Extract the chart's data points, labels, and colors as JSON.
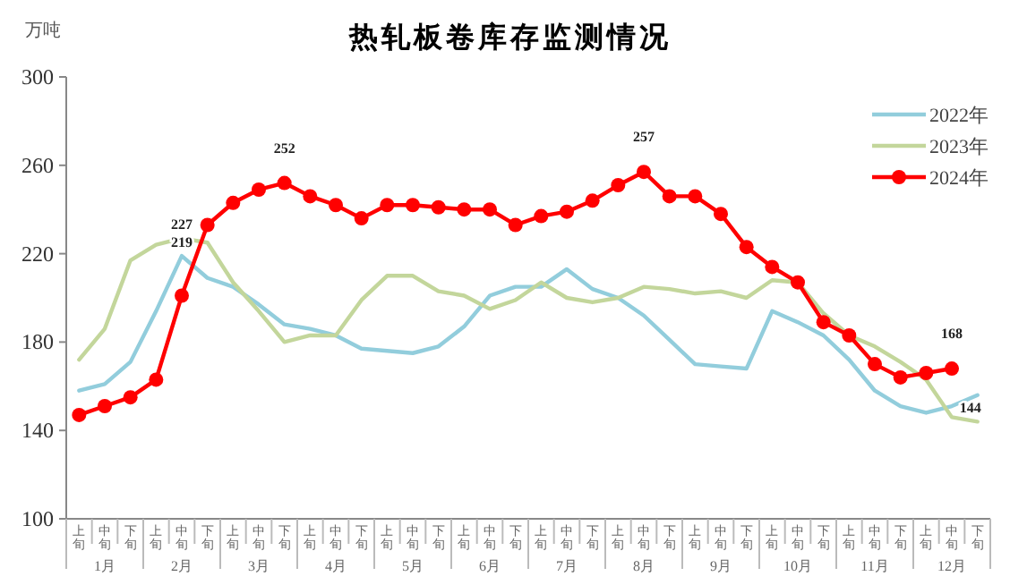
{
  "chart_data": {
    "type": "line",
    "title": "热轧板卷库存监测情况",
    "ylabel": "万吨",
    "categories": [
      "上旬",
      "中旬",
      "下旬",
      "上旬",
      "中旬",
      "下旬",
      "上旬",
      "中旬",
      "下旬",
      "上旬",
      "中旬",
      "下旬",
      "上旬",
      "中旬",
      "下旬",
      "上旬",
      "中旬",
      "下旬",
      "上旬",
      "中旬",
      "下旬",
      "上旬",
      "中旬",
      "下旬",
      "上旬",
      "中旬",
      "下旬",
      "上旬",
      "中旬",
      "下旬",
      "上旬",
      "中旬",
      "下旬",
      "上旬",
      "中旬",
      "下旬"
    ],
    "annotations": [
      "1月",
      "2月",
      "3月",
      "4月",
      "5月",
      "6月",
      "7月",
      "8月",
      "9月",
      "10月",
      "11月",
      "12月"
    ],
    "ylim": [
      100,
      300
    ],
    "yticks": [
      100,
      140,
      180,
      220,
      260,
      300
    ],
    "grid": false,
    "legend": "top right",
    "series": [
      {
        "name": "2022年",
        "color": "#92cddc",
        "marker": "none",
        "values": [
          158,
          161,
          171,
          194,
          219,
          209,
          205,
          197,
          188,
          186,
          183,
          177,
          176,
          175,
          178,
          187,
          201,
          205,
          205,
          213,
          204,
          200,
          192,
          181,
          170,
          169,
          168,
          194,
          189,
          183,
          172,
          158,
          151,
          148,
          151,
          156
        ],
        "value_labels": [
          null,
          null,
          null,
          null,
          "219",
          null,
          null,
          null,
          null,
          null,
          null,
          null,
          null,
          null,
          null,
          null,
          null,
          null,
          null,
          null,
          null,
          null,
          null,
          null,
          null,
          null,
          null,
          null,
          null,
          null,
          null,
          null,
          null,
          null,
          null,
          null
        ]
      },
      {
        "name": "2023年",
        "color": "#c3d69b",
        "marker": "none",
        "values": [
          172,
          186,
          217,
          224,
          227,
          225,
          207,
          194,
          180,
          183,
          183,
          199,
          210,
          210,
          203,
          201,
          195,
          199,
          207,
          200,
          198,
          200,
          205,
          204,
          202,
          203,
          200,
          208,
          207,
          193,
          183,
          178,
          171,
          163,
          146,
          144
        ],
        "value_labels": [
          null,
          null,
          null,
          null,
          "227",
          null,
          null,
          null,
          null,
          null,
          null,
          null,
          null,
          null,
          null,
          null,
          null,
          null,
          null,
          null,
          null,
          null,
          null,
          null,
          null,
          null,
          null,
          null,
          null,
          null,
          null,
          null,
          null,
          null,
          null,
          "144"
        ]
      },
      {
        "name": "2024年",
        "color": "#ff0000",
        "marker": "circle",
        "values": [
          147,
          151,
          155,
          163,
          201,
          233,
          243,
          249,
          252,
          246,
          242,
          236,
          242,
          242,
          241,
          240,
          240,
          233,
          237,
          239,
          244,
          251,
          257,
          246,
          246,
          238,
          223,
          214,
          207,
          189,
          183,
          170,
          164,
          166,
          168,
          null
        ],
        "value_labels": [
          null,
          null,
          null,
          null,
          null,
          null,
          null,
          null,
          "252",
          null,
          null,
          null,
          null,
          null,
          null,
          null,
          null,
          null,
          null,
          null,
          null,
          null,
          "257",
          null,
          null,
          null,
          null,
          null,
          null,
          null,
          null,
          null,
          null,
          null,
          "168",
          null
        ]
      }
    ]
  }
}
